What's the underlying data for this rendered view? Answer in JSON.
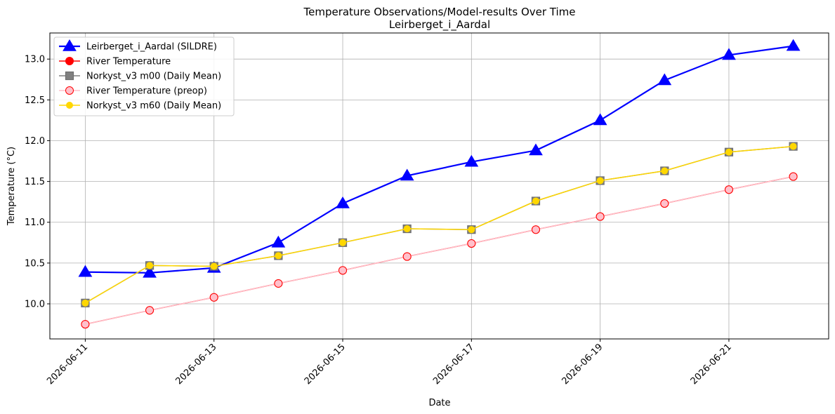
{
  "chart_data": {
    "type": "line",
    "title": "Temperature Observations/Model-results Over Time",
    "subtitle": "Leirberget_i_Aardal",
    "xlabel": "Date",
    "ylabel": "Temperature (°C)",
    "ylim": [
      9.57,
      13.32
    ],
    "xlim": [
      "2026-06-10",
      "2026-06-22"
    ],
    "grid": true,
    "legend_position": "top-left",
    "x": [
      "2026-06-11",
      "2026-06-12",
      "2026-06-13",
      "2026-06-14",
      "2026-06-15",
      "2026-06-16",
      "2026-06-17",
      "2026-06-18",
      "2026-06-19",
      "2026-06-20",
      "2026-06-21",
      "2026-06-22"
    ],
    "x_ticks": [
      "2026-06-11",
      "2026-06-13",
      "2026-06-15",
      "2026-06-17",
      "2026-06-19",
      "2026-06-21"
    ],
    "y_ticks": [
      "10.0",
      "10.5",
      "11.0",
      "11.5",
      "12.0",
      "12.5",
      "13.0"
    ],
    "series": [
      {
        "name": "Leirberget_i_Aardal (SILDRE)",
        "color": "#0000ff",
        "marker": "triangle",
        "values": [
          10.39,
          10.38,
          10.44,
          10.75,
          11.23,
          11.57,
          11.74,
          11.88,
          12.25,
          12.74,
          13.05,
          13.16
        ]
      },
      {
        "name": "River Temperature",
        "color": "#ff0000",
        "marker": "circle",
        "values": [
          9.75,
          9.92,
          10.08,
          10.25,
          10.41,
          10.58,
          10.74,
          10.91,
          11.07,
          11.23,
          11.4,
          11.56
        ]
      },
      {
        "name": "Norkyst_v3 m00 (Daily Mean)",
        "color": "#808080",
        "marker": "square",
        "values": [
          10.01,
          10.47,
          10.46,
          10.59,
          10.75,
          10.92,
          10.91,
          11.26,
          11.51,
          11.63,
          11.86,
          11.93
        ]
      },
      {
        "name": "River Temperature (preop)",
        "color": "#ffc0cb",
        "marker": "circle",
        "values": [
          9.75,
          9.92,
          10.08,
          10.25,
          10.41,
          10.58,
          10.74,
          10.91,
          11.07,
          11.23,
          11.4,
          11.56
        ]
      },
      {
        "name": "Norkyst_v3 m60 (Daily Mean)",
        "color": "#ffd700",
        "marker": "circle",
        "values": [
          10.01,
          10.47,
          10.46,
          10.59,
          10.75,
          10.92,
          10.91,
          11.26,
          11.51,
          11.63,
          11.86,
          11.93
        ]
      }
    ]
  }
}
